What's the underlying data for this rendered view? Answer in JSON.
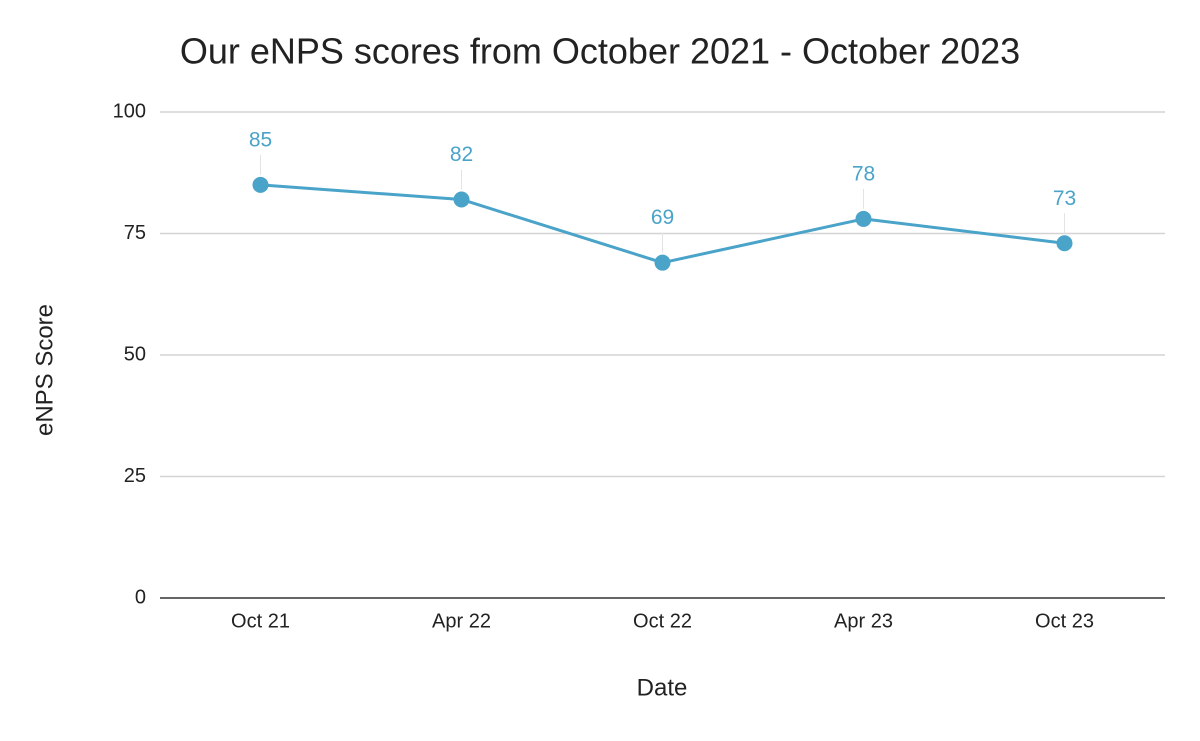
{
  "chart_data": {
    "type": "line",
    "title": "Our eNPS scores from October 2021 - October 2023",
    "x_label": "Date",
    "y_label": "eNPS Score",
    "categories": [
      "Oct 21",
      "Apr 22",
      "Oct 22",
      "Apr 23",
      "Oct 23"
    ],
    "series": [
      {
        "name": "eNPS Score",
        "color": "#4aa3c8",
        "values": [
          85,
          82,
          69,
          78,
          73
        ]
      }
    ],
    "ylim": [
      0,
      100
    ],
    "yticks": [
      0,
      25,
      50,
      75,
      100
    ],
    "grid": true,
    "data_labels": true
  }
}
